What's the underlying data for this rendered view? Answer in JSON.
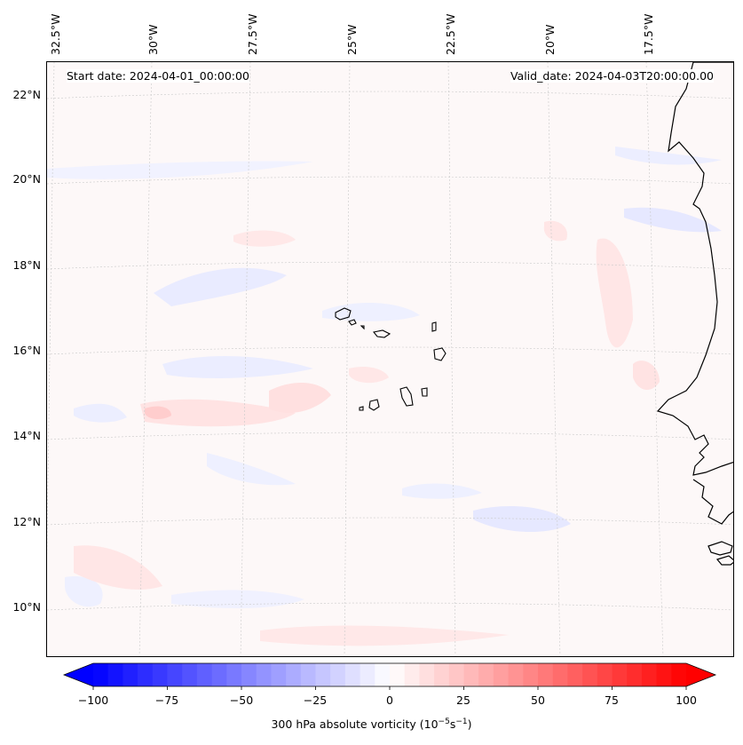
{
  "header": {
    "start_date": "Start date: 2024-04-01_00:00:00",
    "valid_date": "Valid_date: 2024-04-03T20:00:00.00"
  },
  "axes": {
    "longitude_labels": [
      "32.5°W",
      "30°W",
      "27.5°W",
      "25°W",
      "22.5°W",
      "20°W",
      "17.5°W"
    ],
    "latitude_labels": [
      "22°N",
      "20°N",
      "18°N",
      "16°N",
      "14°N",
      "12°N",
      "10°N"
    ]
  },
  "colorbar": {
    "ticks": [
      "−100",
      "−75",
      "−50",
      "−25",
      "0",
      "25",
      "50",
      "75",
      "100"
    ],
    "label_prefix": "300 hPa absolute vorticity (10",
    "label_exp1": "−5",
    "label_mid": "s",
    "label_exp2": "−1",
    "label_suffix": ")",
    "min": -100,
    "max": 100,
    "step": 5,
    "colors": {
      "negative": "#0000ff",
      "zero": "#ffffff",
      "positive": "#ff0000"
    }
  }
}
